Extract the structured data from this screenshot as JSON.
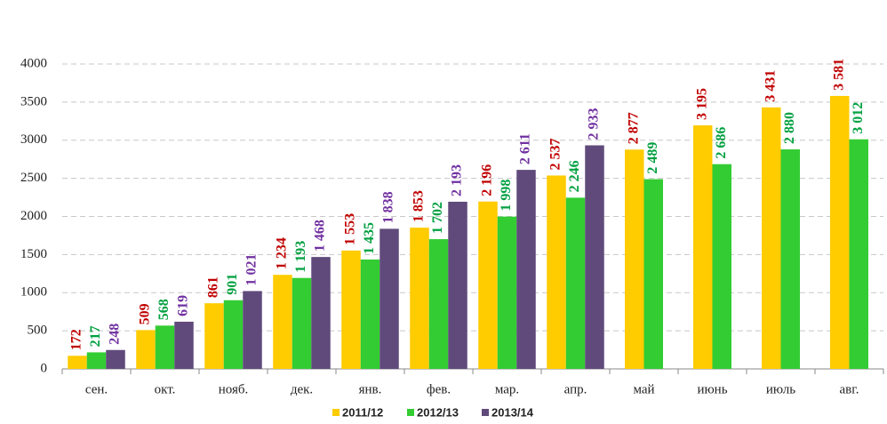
{
  "chart_data": {
    "type": "bar",
    "categories": [
      "сен.",
      "окт.",
      "нояб.",
      "дек.",
      "янв.",
      "фев.",
      "мар.",
      "апр.",
      "май",
      "июнь",
      "июль",
      "авг."
    ],
    "series": [
      {
        "name": "2011/12",
        "color": "#ffcc00",
        "label_color": "#c00000",
        "values": [
          172,
          509,
          861,
          1234,
          1553,
          1853,
          2196,
          2537,
          2877,
          3195,
          3431,
          3581
        ],
        "value_labels": [
          "172",
          "509",
          "861",
          "1 234",
          "1 553",
          "1 853",
          "2 196",
          "2 537",
          "2 877",
          "3 195",
          "3 431",
          "3 581"
        ]
      },
      {
        "name": "2012/13",
        "color": "#33cc33",
        "label_color": "#00a040",
        "values": [
          217,
          568,
          901,
          1193,
          1435,
          1702,
          1998,
          2246,
          2489,
          2686,
          2880,
          3012
        ],
        "value_labels": [
          "217",
          "568",
          "901",
          "1 193",
          "1 435",
          "1 702",
          "1 998",
          "2 246",
          "2 489",
          "2 686",
          "2 880",
          "3 012"
        ]
      },
      {
        "name": "2013/14",
        "color": "#604a7b",
        "label_color": "#7030a0",
        "values": [
          248,
          619,
          1021,
          1468,
          1838,
          2193,
          2611,
          2933,
          null,
          null,
          null,
          null
        ],
        "value_labels": [
          "248",
          "619",
          "1 021",
          "1 468",
          "1 838",
          "2 193",
          "2 611",
          "2 933",
          null,
          null,
          null,
          null
        ]
      }
    ],
    "ylim": [
      0,
      4000
    ],
    "yticks": [
      0,
      500,
      1000,
      1500,
      2000,
      2500,
      3000,
      3500,
      4000
    ],
    "grid": true,
    "legend": "bottom"
  }
}
